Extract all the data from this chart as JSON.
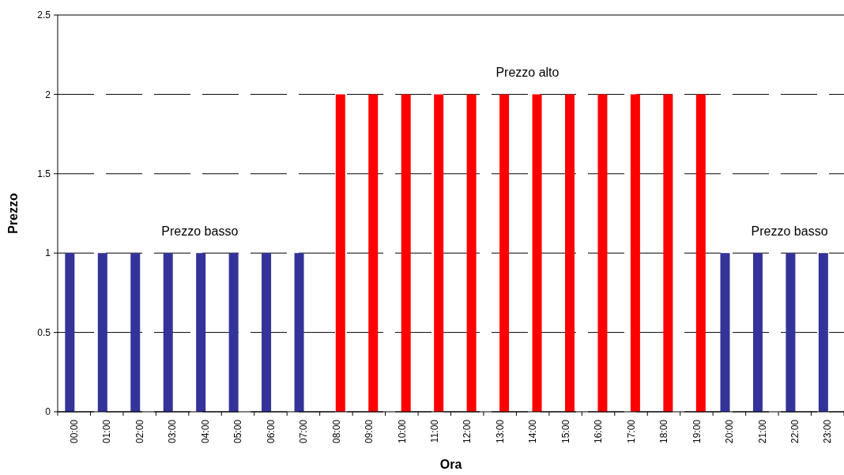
{
  "chart_data": {
    "type": "bar",
    "xlabel": "Ora",
    "ylabel": "Prezzo",
    "categories": [
      "00:00",
      "01:00",
      "02:00",
      "03:00",
      "04:00",
      "05:00",
      "06:00",
      "07:00",
      "08:00",
      "09:00",
      "10:00",
      "11:00",
      "12:00",
      "13:00",
      "14:00",
      "15:00",
      "16:00",
      "17:00",
      "18:00",
      "19:00",
      "20:00",
      "21:00",
      "22:00",
      "23:00"
    ],
    "series": [
      {
        "color": "#333399",
        "values": [
          1,
          1,
          1,
          1,
          1,
          1,
          1,
          1,
          null,
          null,
          null,
          null,
          null,
          null,
          null,
          null,
          null,
          null,
          null,
          null,
          1,
          1,
          1,
          1
        ]
      },
      {
        "color": "#ff0000",
        "values": [
          null,
          null,
          null,
          null,
          null,
          null,
          null,
          null,
          2,
          2,
          2,
          2,
          2,
          2,
          2,
          2,
          2,
          2,
          2,
          2,
          null,
          null,
          null,
          null
        ]
      }
    ],
    "ylim": [
      0,
      2.5
    ],
    "yticks": [
      0,
      0.5,
      1,
      1.5,
      2,
      2.5
    ],
    "grid": "y",
    "annotations": [
      "Prezzo basso",
      "Prezzo alto",
      "Prezzo basso"
    ]
  }
}
